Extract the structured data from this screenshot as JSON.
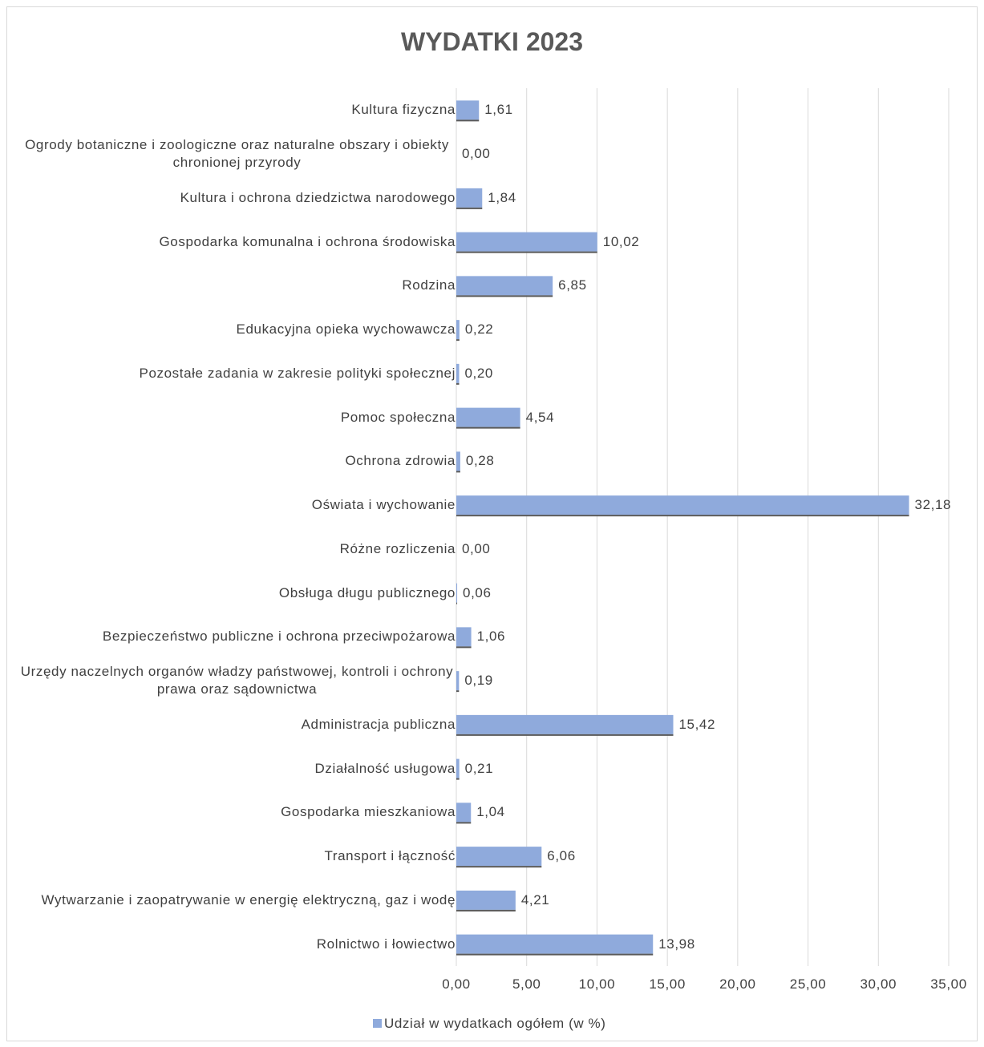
{
  "chart_data": {
    "type": "barh",
    "title": "WYDATKI 2023",
    "categories": [
      "Kultura fizyczna",
      "Ogrody botaniczne i zoologiczne oraz naturalne obszary i obiekty chronionej przyrody",
      "Kultura i ochrona dziedzictwa narodowego",
      "Gospodarka komunalna i ochrona środowiska",
      "Rodzina",
      "Edukacyjna opieka wychowawcza",
      "Pozostałe zadania w zakresie polityki społecznej",
      "Pomoc społeczna",
      "Ochrona zdrowia",
      "Oświata i wychowanie",
      "Różne rozliczenia",
      "Obsługa długu publicznego",
      "Bezpieczeństwo publiczne i ochrona przeciwpożarowa",
      "Urzędy naczelnych organów władzy państwowej, kontroli i ochrony prawa oraz sądownictwa",
      "Administracja publiczna",
      "Działalność usługowa",
      "Gospodarka mieszkaniowa",
      "Transport i łączność",
      "Wytwarzanie i zaopatrywanie w energię elektryczną, gaz i wodę",
      "Rolnictwo i łowiectwo"
    ],
    "series": [
      {
        "name": "Udział w wydatkach ogółem (w %)",
        "color": "#8faadc",
        "values": [
          1.61,
          0,
          1.84,
          10.02,
          6.85,
          0.22,
          0.2,
          4.54,
          0.28,
          32.18,
          0,
          0.06,
          1.06,
          0.19,
          15.42,
          0.21,
          1.04,
          6.06,
          4.21,
          13.98
        ],
        "value_labels": [
          "1,61",
          "0,00",
          "1,84",
          "10,02",
          "6,85",
          "0,22",
          "0,20",
          "4,54",
          "0,28",
          "32,18",
          "0,00",
          "0,06",
          "1,06",
          "0,19",
          "15,42",
          "0,21",
          "1,04",
          "6,06",
          "4,21",
          "13,98"
        ]
      }
    ],
    "xlim": [
      0,
      35
    ],
    "xticks": [
      {
        "value": 0,
        "label": "0,00"
      },
      {
        "value": 5,
        "label": "5,00"
      },
      {
        "value": 10,
        "label": "10,00"
      },
      {
        "value": 15,
        "label": "15,00"
      },
      {
        "value": 20,
        "label": "20,00"
      },
      {
        "value": 25,
        "label": "25,00"
      },
      {
        "value": 30,
        "label": "30,00"
      },
      {
        "value": 35,
        "label": "35,00"
      }
    ],
    "grid": true,
    "legend": "bottom"
  }
}
